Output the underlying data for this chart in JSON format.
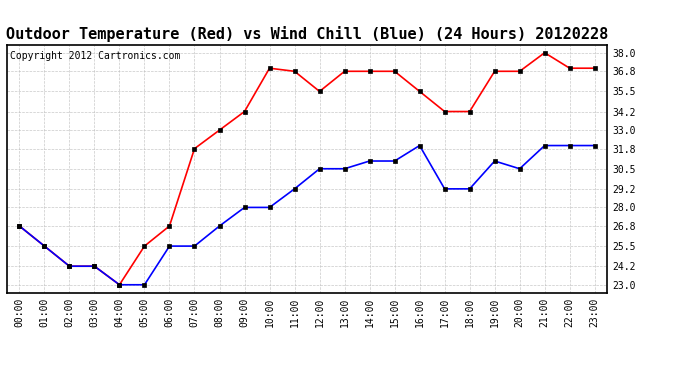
{
  "title": "Outdoor Temperature (Red) vs Wind Chill (Blue) (24 Hours) 20120228",
  "copyright_text": "Copyright 2012 Cartronics.com",
  "x_labels": [
    "00:00",
    "01:00",
    "02:00",
    "03:00",
    "04:00",
    "05:00",
    "06:00",
    "07:00",
    "08:00",
    "09:00",
    "10:00",
    "11:00",
    "12:00",
    "13:00",
    "14:00",
    "15:00",
    "16:00",
    "17:00",
    "18:00",
    "19:00",
    "20:00",
    "21:00",
    "22:00",
    "23:00"
  ],
  "red_data": [
    26.8,
    25.5,
    24.2,
    24.2,
    23.0,
    25.5,
    26.8,
    31.8,
    33.0,
    34.2,
    37.0,
    36.8,
    35.5,
    36.8,
    36.8,
    36.8,
    35.5,
    34.2,
    34.2,
    36.8,
    36.8,
    38.0,
    37.0,
    37.0
  ],
  "blue_data": [
    26.8,
    25.5,
    24.2,
    24.2,
    23.0,
    23.0,
    25.5,
    25.5,
    26.8,
    28.0,
    28.0,
    29.2,
    30.5,
    30.5,
    31.0,
    31.0,
    32.0,
    29.2,
    29.2,
    31.0,
    30.5,
    32.0,
    32.0,
    32.0
  ],
  "red_color": "red",
  "blue_color": "blue",
  "bg_color": "#ffffff",
  "grid_color": "#bbbbbb",
  "y_ticks": [
    23.0,
    24.2,
    25.5,
    26.8,
    28.0,
    29.2,
    30.5,
    31.8,
    33.0,
    34.2,
    35.5,
    36.8,
    38.0
  ],
  "ylim": [
    22.5,
    38.5
  ],
  "title_fontsize": 11,
  "copyright_fontsize": 7,
  "tick_fontsize": 7,
  "marker": "s",
  "marker_size": 3,
  "linewidth": 1.2
}
